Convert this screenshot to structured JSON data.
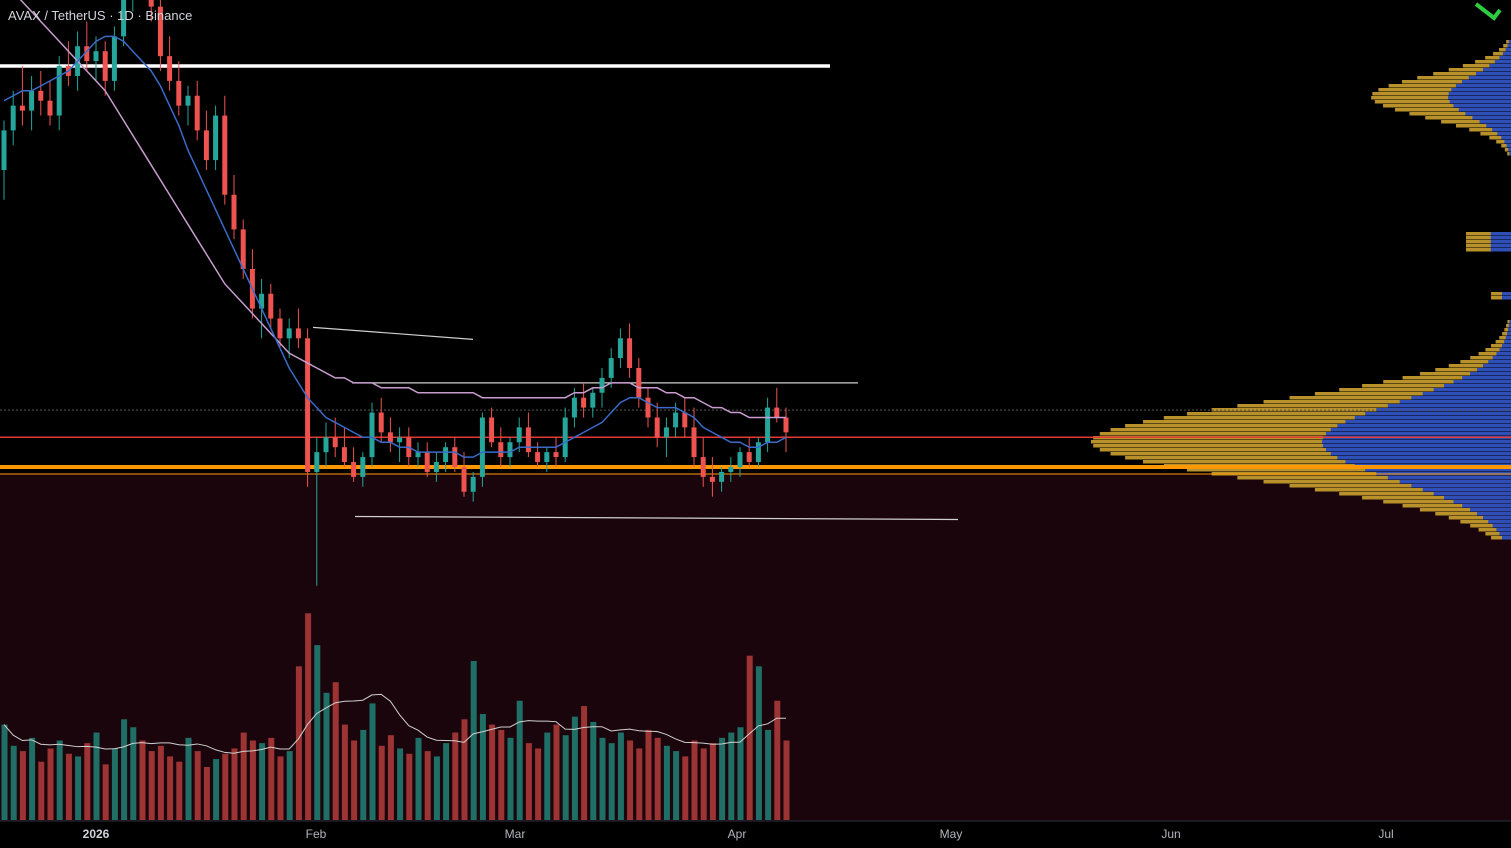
{
  "header": {
    "symbol": "AVAX",
    "separator": " / ",
    "quote": "TetherUS",
    "interval_sep": " · ",
    "interval": "1D",
    "exchange": "Binance"
  },
  "colors": {
    "background": "#000000",
    "lower_zone": "#1a050c",
    "up": "#26a69a",
    "down": "#ef5350",
    "ema_fast": "#3a6bc9",
    "ema_slow": "#c89ccf",
    "level_orange": "#ff9800",
    "level_red": "#e53935",
    "level_white": "#ffffff",
    "vp_gold": "#b8912a",
    "vp_blue": "#2f4fb8"
  },
  "chart_data": {
    "type": "candlestick",
    "x_axis": {
      "tick_labels": [
        {
          "label": "2026",
          "bold": true
        },
        {
          "label": "Feb",
          "bold": false
        },
        {
          "label": "Mar",
          "bold": false
        },
        {
          "label": "Apr",
          "bold": false
        },
        {
          "label": "May",
          "bold": false
        },
        {
          "label": "Jun",
          "bold": false
        },
        {
          "label": "Jul",
          "bold": false
        }
      ]
    },
    "price_scale_note": "price axis hidden; values are approximate relative to support level = 1.00",
    "candles": [
      [
        1.2,
        1.3,
        1.14,
        1.28
      ],
      [
        1.28,
        1.36,
        1.25,
        1.33
      ],
      [
        1.33,
        1.41,
        1.29,
        1.32
      ],
      [
        1.32,
        1.39,
        1.28,
        1.36
      ],
      [
        1.36,
        1.4,
        1.31,
        1.34
      ],
      [
        1.34,
        1.38,
        1.29,
        1.31
      ],
      [
        1.31,
        1.43,
        1.28,
        1.41
      ],
      [
        1.41,
        1.46,
        1.37,
        1.39
      ],
      [
        1.39,
        1.48,
        1.36,
        1.45
      ],
      [
        1.45,
        1.5,
        1.4,
        1.42
      ],
      [
        1.42,
        1.47,
        1.38,
        1.44
      ],
      [
        1.44,
        1.46,
        1.35,
        1.38
      ],
      [
        1.38,
        1.49,
        1.36,
        1.47
      ],
      [
        1.47,
        1.58,
        1.45,
        1.55
      ],
      [
        1.55,
        1.62,
        1.52,
        1.6
      ],
      [
        1.6,
        1.64,
        1.55,
        1.58
      ],
      [
        1.58,
        1.6,
        1.5,
        1.53
      ],
      [
        1.53,
        1.56,
        1.4,
        1.43
      ],
      [
        1.43,
        1.47,
        1.36,
        1.38
      ],
      [
        1.38,
        1.42,
        1.31,
        1.33
      ],
      [
        1.33,
        1.37,
        1.29,
        1.35
      ],
      [
        1.35,
        1.38,
        1.26,
        1.28
      ],
      [
        1.28,
        1.32,
        1.2,
        1.22
      ],
      [
        1.22,
        1.33,
        1.2,
        1.31
      ],
      [
        1.31,
        1.35,
        1.13,
        1.15
      ],
      [
        1.15,
        1.19,
        1.06,
        1.08
      ],
      [
        1.08,
        1.1,
        0.98,
        1.0
      ],
      [
        1.0,
        1.04,
        0.9,
        0.92
      ],
      [
        0.92,
        0.98,
        0.86,
        0.95
      ],
      [
        0.95,
        0.97,
        0.88,
        0.9
      ],
      [
        0.9,
        0.92,
        0.84,
        0.86
      ],
      [
        0.86,
        0.9,
        0.82,
        0.88
      ],
      [
        0.88,
        0.92,
        0.84,
        0.86
      ],
      [
        0.86,
        0.88,
        0.56,
        0.59
      ],
      [
        0.59,
        0.66,
        0.36,
        0.63
      ],
      [
        0.63,
        0.69,
        0.6,
        0.66
      ],
      [
        0.66,
        0.7,
        0.62,
        0.64
      ],
      [
        0.64,
        0.68,
        0.6,
        0.61
      ],
      [
        0.61,
        0.64,
        0.57,
        0.58
      ],
      [
        0.58,
        0.63,
        0.56,
        0.62
      ],
      [
        0.62,
        0.73,
        0.6,
        0.71
      ],
      [
        0.71,
        0.74,
        0.65,
        0.67
      ],
      [
        0.67,
        0.7,
        0.63,
        0.65
      ],
      [
        0.65,
        0.68,
        0.61,
        0.66
      ],
      [
        0.66,
        0.68,
        0.6,
        0.62
      ],
      [
        0.62,
        0.65,
        0.6,
        0.63
      ],
      [
        0.63,
        0.65,
        0.58,
        0.59
      ],
      [
        0.59,
        0.63,
        0.57,
        0.61
      ],
      [
        0.61,
        0.65,
        0.59,
        0.64
      ],
      [
        0.64,
        0.66,
        0.59,
        0.6
      ],
      [
        0.6,
        0.63,
        0.54,
        0.55
      ],
      [
        0.55,
        0.59,
        0.53,
        0.58
      ],
      [
        0.58,
        0.71,
        0.56,
        0.7
      ],
      [
        0.7,
        0.72,
        0.64,
        0.65
      ],
      [
        0.65,
        0.68,
        0.6,
        0.62
      ],
      [
        0.62,
        0.66,
        0.6,
        0.65
      ],
      [
        0.65,
        0.7,
        0.63,
        0.68
      ],
      [
        0.68,
        0.71,
        0.62,
        0.63
      ],
      [
        0.63,
        0.65,
        0.6,
        0.61
      ],
      [
        0.61,
        0.64,
        0.59,
        0.63
      ],
      [
        0.63,
        0.66,
        0.6,
        0.62
      ],
      [
        0.62,
        0.72,
        0.61,
        0.7
      ],
      [
        0.7,
        0.76,
        0.68,
        0.74
      ],
      [
        0.74,
        0.77,
        0.7,
        0.72
      ],
      [
        0.72,
        0.76,
        0.7,
        0.75
      ],
      [
        0.75,
        0.8,
        0.72,
        0.78
      ],
      [
        0.78,
        0.84,
        0.76,
        0.82
      ],
      [
        0.82,
        0.88,
        0.8,
        0.86
      ],
      [
        0.86,
        0.89,
        0.78,
        0.8
      ],
      [
        0.8,
        0.82,
        0.72,
        0.74
      ],
      [
        0.74,
        0.76,
        0.68,
        0.7
      ],
      [
        0.7,
        0.73,
        0.64,
        0.66
      ],
      [
        0.66,
        0.7,
        0.62,
        0.68
      ],
      [
        0.68,
        0.73,
        0.66,
        0.71
      ],
      [
        0.71,
        0.74,
        0.66,
        0.68
      ],
      [
        0.68,
        0.72,
        0.6,
        0.62
      ],
      [
        0.62,
        0.66,
        0.56,
        0.58
      ],
      [
        0.58,
        0.62,
        0.54,
        0.57
      ],
      [
        0.57,
        0.6,
        0.55,
        0.59
      ],
      [
        0.59,
        0.62,
        0.57,
        0.6
      ],
      [
        0.6,
        0.64,
        0.58,
        0.63
      ],
      [
        0.63,
        0.66,
        0.6,
        0.61
      ],
      [
        0.61,
        0.66,
        0.6,
        0.65
      ],
      [
        0.65,
        0.74,
        0.63,
        0.72
      ],
      [
        0.72,
        0.76,
        0.69,
        0.7
      ],
      [
        0.7,
        0.72,
        0.63,
        0.67
      ]
    ],
    "volumes": [
      0.36,
      0.28,
      0.26,
      0.31,
      0.22,
      0.27,
      0.3,
      0.25,
      0.24,
      0.29,
      0.33,
      0.21,
      0.27,
      0.38,
      0.35,
      0.3,
      0.26,
      0.28,
      0.24,
      0.22,
      0.31,
      0.26,
      0.2,
      0.23,
      0.25,
      0.27,
      0.33,
      0.3,
      0.29,
      0.31,
      0.24,
      0.26,
      0.58,
      0.78,
      0.66,
      0.48,
      0.52,
      0.36,
      0.3,
      0.34,
      0.44,
      0.28,
      0.32,
      0.27,
      0.25,
      0.31,
      0.26,
      0.24,
      0.29,
      0.33,
      0.38,
      0.6,
      0.4,
      0.36,
      0.34,
      0.31,
      0.45,
      0.29,
      0.27,
      0.33,
      0.36,
      0.32,
      0.39,
      0.43,
      0.37,
      0.31,
      0.29,
      0.33,
      0.3,
      0.27,
      0.34,
      0.31,
      0.28,
      0.26,
      0.24,
      0.3,
      0.27,
      0.29,
      0.31,
      0.33,
      0.35,
      0.62,
      0.58,
      0.34,
      0.45,
      0.3
    ],
    "ema_fast": [
      1.34,
      1.35,
      1.36,
      1.36,
      1.37,
      1.38,
      1.39,
      1.4,
      1.42,
      1.44,
      1.46,
      1.47,
      1.47,
      1.46,
      1.44,
      1.42,
      1.4,
      1.37,
      1.33,
      1.29,
      1.24,
      1.2,
      1.16,
      1.12,
      1.08,
      1.04,
      1.0,
      0.96,
      0.92,
      0.88,
      0.84,
      0.8,
      0.77,
      0.74,
      0.72,
      0.7,
      0.69,
      0.68,
      0.67,
      0.66,
      0.66,
      0.65,
      0.65,
      0.64,
      0.64,
      0.63,
      0.63,
      0.63,
      0.63,
      0.63,
      0.62,
      0.62,
      0.63,
      0.63,
      0.63,
      0.63,
      0.64,
      0.64,
      0.64,
      0.64,
      0.64,
      0.65,
      0.66,
      0.67,
      0.68,
      0.69,
      0.71,
      0.73,
      0.74,
      0.74,
      0.73,
      0.72,
      0.72,
      0.72,
      0.71,
      0.7,
      0.68,
      0.67,
      0.66,
      0.65,
      0.65,
      0.64,
      0.64,
      0.65,
      0.65,
      0.66
    ],
    "ema_slow": [
      1.58,
      1.56,
      1.54,
      1.52,
      1.5,
      1.48,
      1.46,
      1.44,
      1.42,
      1.4,
      1.38,
      1.36,
      1.33,
      1.3,
      1.27,
      1.24,
      1.21,
      1.18,
      1.15,
      1.12,
      1.09,
      1.06,
      1.03,
      1.0,
      0.97,
      0.95,
      0.93,
      0.91,
      0.89,
      0.87,
      0.85,
      0.83,
      0.82,
      0.81,
      0.8,
      0.79,
      0.78,
      0.78,
      0.77,
      0.77,
      0.77,
      0.76,
      0.76,
      0.76,
      0.76,
      0.75,
      0.75,
      0.75,
      0.75,
      0.75,
      0.75,
      0.75,
      0.74,
      0.74,
      0.74,
      0.74,
      0.74,
      0.74,
      0.74,
      0.74,
      0.74,
      0.74,
      0.75,
      0.75,
      0.76,
      0.76,
      0.77,
      0.77,
      0.77,
      0.76,
      0.76,
      0.76,
      0.75,
      0.75,
      0.74,
      0.74,
      0.73,
      0.72,
      0.72,
      0.71,
      0.71,
      0.7,
      0.7,
      0.7,
      0.7,
      0.7
    ],
    "levels": {
      "white_resistance": 1.41,
      "red_line": 0.66,
      "orange_support": 0.6,
      "range_high": 0.77,
      "range_low": 0.5,
      "feb_local_high": 0.87
    },
    "volume_profile": "visible range volume profile on right edge, gold and blue bars",
    "grid": false
  }
}
